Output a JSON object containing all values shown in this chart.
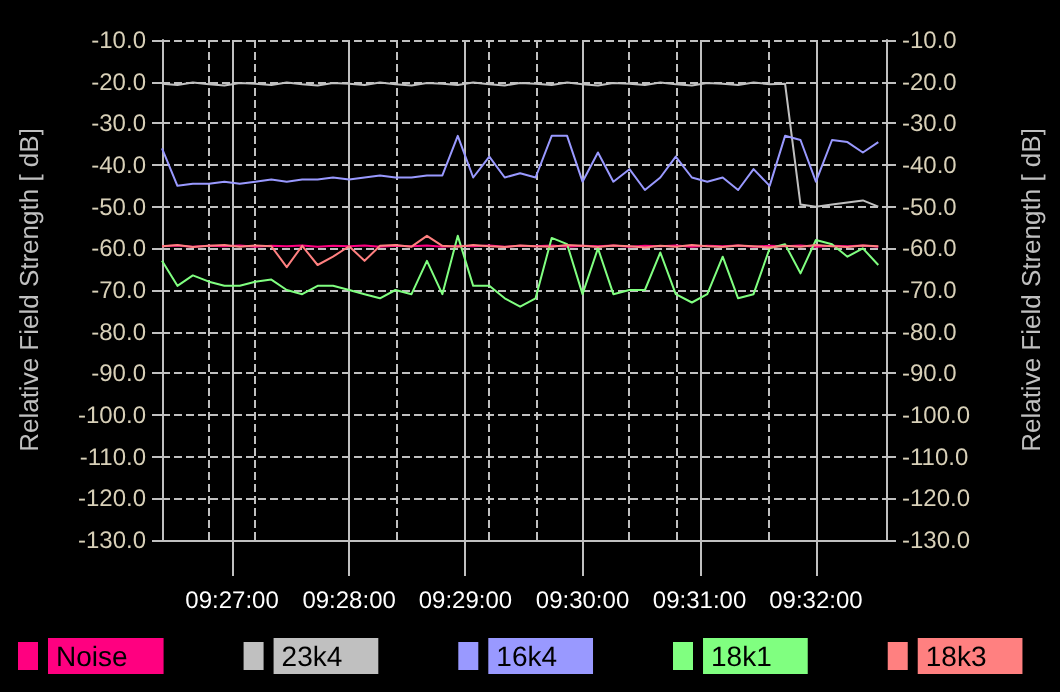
{
  "chart_data": {
    "type": "line",
    "ylabel": "Relative Field Strength [ dB]",
    "y2label": "Relative Field Strength [ dB]",
    "x": [
      9.44,
      9.4422,
      9.4444,
      9.4467,
      9.4489,
      9.4511,
      9.4533,
      9.4556,
      9.4578,
      9.46,
      9.4622,
      9.4644,
      9.4667,
      9.4689,
      9.4711,
      9.4733,
      9.4756,
      9.4778,
      9.48,
      9.4822,
      9.4844,
      9.4867,
      9.4889,
      9.4911,
      9.4933,
      9.4956,
      9.4978,
      9.5,
      9.5022,
      9.5044,
      9.5067,
      9.5089,
      9.5111,
      9.5133,
      9.5156,
      9.5178,
      9.52,
      9.5222,
      9.5244,
      9.5267,
      9.5289,
      9.5311,
      9.5333,
      9.5356,
      9.5378,
      9.54,
      9.5422
    ],
    "xlim": [
      9.44,
      9.5433
    ],
    "xticks": [
      {
        "value": 9.45,
        "label": "09:27:00"
      },
      {
        "value": 9.4667,
        "label": "09:28:00"
      },
      {
        "value": 9.4833,
        "label": "09:29:00"
      },
      {
        "value": 9.5,
        "label": "09:30:00"
      },
      {
        "value": 9.5167,
        "label": "09:31:00"
      },
      {
        "value": 9.5333,
        "label": "09:32:00"
      }
    ],
    "ylim": [
      -130,
      -10
    ],
    "yticks": [
      {
        "value": -130,
        "label": "-130.0"
      },
      {
        "value": -120,
        "label": "-120.0"
      },
      {
        "value": -110,
        "label": "-110.0"
      },
      {
        "value": -100,
        "label": "-100.0"
      },
      {
        "value": -90,
        "label": "-90.0"
      },
      {
        "value": -80,
        "label": "-80.0"
      },
      {
        "value": -70,
        "label": "-70.0"
      },
      {
        "value": -60,
        "label": "-60.0"
      },
      {
        "value": -50,
        "label": "-50.0"
      },
      {
        "value": -40,
        "label": "-40.0"
      },
      {
        "value": -30,
        "label": "-30.0"
      },
      {
        "value": -20,
        "label": "-20.0"
      },
      {
        "value": -10,
        "label": "-10.0"
      }
    ],
    "y2lim": [
      -130,
      -10
    ],
    "y2ticks": [
      {
        "value": -130,
        "label": "-130.0"
      },
      {
        "value": -120,
        "label": "-120.0"
      },
      {
        "value": -110,
        "label": "-110.0"
      },
      {
        "value": -100,
        "label": "-100.0"
      },
      {
        "value": -90,
        "label": "-90.0"
      },
      {
        "value": -80,
        "label": "-80.0"
      },
      {
        "value": -70,
        "label": "-70.0"
      },
      {
        "value": -60,
        "label": "-60.0"
      },
      {
        "value": -50,
        "label": "-50.0"
      },
      {
        "value": -40,
        "label": "-40.0"
      },
      {
        "value": -30,
        "label": "-30.0"
      },
      {
        "value": -20,
        "label": "-20.0"
      },
      {
        "value": -10,
        "label": "-10.0"
      }
    ],
    "grid": true,
    "legend": "bottom",
    "marker": "none",
    "line_style": "solid",
    "series": [
      {
        "name": "Noise",
        "color": "#ff0080",
        "values": [
          -59.5,
          -59.3,
          -59.6,
          -59.4,
          -59.5,
          -59.3,
          -59.6,
          -59.4,
          -59.5,
          -59.3,
          -59.6,
          -59.4,
          -59.5,
          -59.3,
          -59.6,
          -59.4,
          -59.5,
          -59.3,
          -59.6,
          -59.4,
          -59.5,
          -59.3,
          -59.6,
          -59.4,
          -59.5,
          -59.3,
          -59.6,
          -59.4,
          -59.5,
          -59.3,
          -59.6,
          -59.4,
          -59.5,
          -59.3,
          -59.6,
          -59.4,
          -59.5,
          -59.3,
          -59.6,
          -59.4,
          -59.5,
          -59.3,
          -59.6,
          -59.4,
          -59.5,
          -59.3,
          -59.6
        ]
      },
      {
        "name": "23k4",
        "color": "#c0c0c0",
        "values": [
          -20.5,
          -20.8,
          -20.2,
          -20.6,
          -20.9,
          -20.3,
          -20.5,
          -20.8,
          -20.2,
          -20.6,
          -20.9,
          -20.3,
          -20.5,
          -20.8,
          -20.2,
          -20.6,
          -20.9,
          -20.3,
          -20.5,
          -20.8,
          -20.2,
          -20.6,
          -20.9,
          -20.3,
          -20.5,
          -20.8,
          -20.2,
          -20.6,
          -20.9,
          -20.3,
          -20.5,
          -20.8,
          -20.2,
          -20.6,
          -20.9,
          -20.3,
          -20.5,
          -20.8,
          -20.2,
          -20.6,
          -20.5,
          -49.5,
          -50,
          -49.5,
          -49,
          -48.5,
          -50
        ]
      },
      {
        "name": "16k4",
        "color": "#9999ff",
        "values": [
          -36,
          -45,
          -44.5,
          -44.5,
          -44,
          -44.5,
          -44,
          -43.5,
          -44,
          -43.5,
          -43.5,
          -43,
          -43.5,
          -43,
          -42.5,
          -43,
          -43,
          -42.5,
          -42.5,
          -33,
          -43,
          -38,
          -43,
          -42,
          -43,
          -33,
          -33,
          -44,
          -37,
          -44,
          -41,
          -46,
          -43,
          -38,
          -43,
          -44,
          -43,
          -46,
          -41,
          -45,
          -33,
          -34,
          -44,
          -34,
          -34.5,
          -37,
          -34.5
        ]
      },
      {
        "name": "18k1",
        "color": "#80ff80",
        "values": [
          -63,
          -69,
          -66.5,
          -68,
          -69,
          -69,
          -68,
          -67.5,
          -70,
          -71,
          -69,
          -69,
          -70,
          -71,
          -72,
          -70,
          -71,
          -63,
          -71,
          -57,
          -69,
          -69,
          -72,
          -74,
          -72,
          -57.5,
          -59,
          -71,
          -60,
          -71,
          -70,
          -70,
          -61,
          -71,
          -73,
          -71,
          -62,
          -72,
          -71,
          -60,
          -59,
          -66,
          -58,
          -59,
          -62,
          -60,
          -64
        ]
      },
      {
        "name": "18k3",
        "color": "#ff8080",
        "values": [
          -59.5,
          -59.2,
          -59.7,
          -59.4,
          -59.2,
          -59.6,
          -59.3,
          -59.5,
          -64.5,
          -59.4,
          -64,
          -62,
          -59.5,
          -63,
          -59.4,
          -59.2,
          -59.6,
          -57,
          -59.4,
          -59.6,
          -59.2,
          -59.5,
          -59.7,
          -59.3,
          -59.5,
          -59.6,
          -59.2,
          -59.4,
          -59.7,
          -59.3,
          -59.5,
          -59.8,
          -59.4,
          -59.6,
          -59.2,
          -59.5,
          -59.7,
          -59.3,
          -59.5,
          -59.8,
          -59.4,
          -59.6,
          -59.2,
          -59.5,
          -59.7,
          -59.3,
          -59.5
        ]
      }
    ]
  }
}
